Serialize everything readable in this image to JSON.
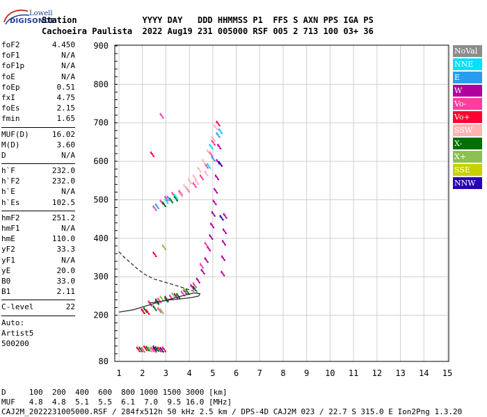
{
  "logo": {
    "line1": "Lowell",
    "line2": "DIGISONDE"
  },
  "header": {
    "row1": "Station             YYYY DAY   DDD HHMMSS P1  FFS S AXN PPS IGA PS",
    "row2": "Cachoeira Paulista  2022 Aug19 231 005000 RSF 005 2 713 100 03+ 36"
  },
  "params": {
    "group1": [
      {
        "label": "foF2",
        "value": "4.450"
      },
      {
        "label": "foF1",
        "value": "N/A"
      },
      {
        "label": "foF1p",
        "value": "N/A"
      },
      {
        "label": "foE",
        "value": "N/A"
      },
      {
        "label": "foEp",
        "value": "0.51"
      },
      {
        "label": "fxI",
        "value": "4.75"
      },
      {
        "label": "foEs",
        "value": "2.15"
      },
      {
        "label": "fmin",
        "value": "1.65"
      }
    ],
    "group2": [
      {
        "label": "MUF(D)",
        "value": "16.02"
      },
      {
        "label": "M(D)",
        "value": "3.60"
      },
      {
        "label": "D",
        "value": "N/A"
      }
    ],
    "group3": [
      {
        "label": "h`F",
        "value": "232.0"
      },
      {
        "label": "h`F2",
        "value": "232.0"
      },
      {
        "label": "h`E",
        "value": "N/A"
      },
      {
        "label": "h`Es",
        "value": "102.5"
      }
    ],
    "group4": [
      {
        "label": "hmF2",
        "value": "251.2"
      },
      {
        "label": "hmF1",
        "value": "N/A"
      },
      {
        "label": "hmE",
        "value": "110.0"
      },
      {
        "label": "yF2",
        "value": "33.3"
      },
      {
        "label": "yF1",
        "value": "N/A"
      },
      {
        "label": "yE",
        "value": "20.0"
      },
      {
        "label": "B0",
        "value": "33.0"
      },
      {
        "label": "B1",
        "value": "2.11"
      }
    ],
    "group5": [
      {
        "label": "C-level",
        "value": "22"
      }
    ],
    "auto_label": "Auto:",
    "artist": "Artist5",
    "artist_version": "500200"
  },
  "legend": [
    {
      "label": "NoVal",
      "color": "#8c8c8c"
    },
    {
      "label": "NNE",
      "color": "#00e0ff"
    },
    {
      "label": "E",
      "color": "#2a9cf0"
    },
    {
      "label": "W",
      "color": "#b0009e"
    },
    {
      "label": "Vo-",
      "color": "#ff3ca0"
    },
    {
      "label": "Vo+",
      "color": "#ff0030"
    },
    {
      "label": "SSW",
      "color": "#ffb4b4"
    },
    {
      "label": "X-",
      "color": "#007000"
    },
    {
      "label": "X+",
      "color": "#8cc050"
    },
    {
      "label": "SSE",
      "color": "#c8d000"
    },
    {
      "label": "NNW",
      "color": "#2800b4"
    }
  ],
  "chart_data": {
    "type": "scatter",
    "xlim": [
      1,
      15
    ],
    "ylim": [
      80,
      900
    ],
    "x_ticks": [
      "1",
      "2",
      "3",
      "4",
      "5",
      "6",
      "7",
      "8",
      "9",
      "10",
      "11",
      "12",
      "13",
      "14",
      "15"
    ],
    "y_ticks": [
      "80",
      "200",
      "300",
      "400",
      "500",
      "600",
      "700",
      "800",
      "900"
    ],
    "grid": true,
    "series": [
      {
        "color": "#b0009e",
        "points": [
          [
            2.3,
            232
          ],
          [
            2.6,
            238
          ],
          [
            3.0,
            245
          ],
          [
            3.4,
            252
          ],
          [
            3.8,
            262
          ],
          [
            4.1,
            275
          ],
          [
            4.35,
            292
          ],
          [
            4.55,
            315
          ],
          [
            4.7,
            345
          ],
          [
            4.8,
            375
          ],
          [
            4.9,
            405
          ],
          [
            4.95,
            435
          ],
          [
            5.0,
            465
          ],
          [
            5.05,
            495
          ],
          [
            5.1,
            525
          ],
          [
            5.15,
            560
          ],
          [
            5.2,
            600
          ],
          [
            5.25,
            640
          ],
          [
            5.3,
            680
          ],
          [
            5.4,
            310
          ],
          [
            5.42,
            350
          ],
          [
            5.45,
            390
          ],
          [
            5.48,
            420
          ],
          [
            5.5,
            460
          ]
        ]
      },
      {
        "color": "#ff3ca0",
        "points": [
          [
            2.0,
            212
          ],
          [
            2.3,
            233
          ],
          [
            2.7,
            240
          ],
          [
            3.2,
            248
          ],
          [
            3.7,
            258
          ],
          [
            4.2,
            280
          ],
          [
            4.5,
            330
          ],
          [
            4.7,
            385
          ],
          [
            2.5,
            480
          ],
          [
            2.8,
            495
          ],
          [
            3.0,
            505
          ],
          [
            3.3,
            515
          ],
          [
            3.6,
            520
          ],
          [
            3.9,
            528
          ],
          [
            4.2,
            540
          ],
          [
            4.5,
            560
          ],
          [
            4.7,
            590
          ],
          [
            4.9,
            620
          ],
          [
            5.0,
            650
          ],
          [
            2.8,
            720
          ],
          [
            2.7,
            215
          ],
          [
            2.0,
            112
          ],
          [
            2.4,
            113
          ]
        ]
      },
      {
        "color": "#ffb4b4",
        "points": [
          [
            3.6,
            515
          ],
          [
            3.8,
            535
          ],
          [
            4.0,
            550
          ],
          [
            4.2,
            560
          ],
          [
            4.4,
            580
          ],
          [
            4.6,
            600
          ],
          [
            4.8,
            625
          ],
          [
            5.0,
            660
          ],
          [
            5.1,
            690
          ],
          [
            4.7,
            570
          ],
          [
            4.3,
            548
          ],
          [
            3.9,
            530
          ]
        ]
      },
      {
        "color": "#007000",
        "points": [
          [
            2.6,
            236
          ],
          [
            3.0,
            242
          ],
          [
            3.5,
            252
          ],
          [
            3.9,
            262
          ],
          [
            4.2,
            271
          ],
          [
            2.9,
            490
          ],
          [
            3.2,
            500
          ],
          [
            3.4,
            505
          ],
          [
            2.1,
            215
          ],
          [
            2.5,
            220
          ],
          [
            1.9,
            113
          ],
          [
            2.6,
            114
          ],
          [
            2.2,
            115
          ]
        ]
      },
      {
        "color": "#8cc050",
        "points": [
          [
            2.8,
            245
          ],
          [
            3.3,
            254
          ],
          [
            3.8,
            266
          ],
          [
            2.9,
            378
          ],
          [
            2.8,
            212
          ],
          [
            2.3,
            113
          ]
        ]
      },
      {
        "color": "#00e0ff",
        "points": [
          [
            3.0,
            498
          ],
          [
            3.4,
            510
          ],
          [
            4.9,
            640
          ],
          [
            5.3,
            680
          ],
          [
            4.8,
            590
          ]
        ]
      },
      {
        "color": "#2a9cf0",
        "points": [
          [
            2.6,
            485
          ],
          [
            3.1,
            505
          ],
          [
            5.2,
            670
          ],
          [
            5.0,
            608
          ]
        ]
      },
      {
        "color": "#ff0030",
        "points": [
          [
            2.0,
            212
          ],
          [
            2.2,
            210
          ],
          [
            1.8,
            113
          ],
          [
            2.1,
            116
          ],
          [
            2.5,
            112
          ],
          [
            2.7,
            113
          ],
          [
            2.9,
            113
          ],
          [
            2.4,
            620
          ],
          [
            2.5,
            360
          ],
          [
            5.2,
            700
          ]
        ]
      },
      {
        "color": "#2800b4",
        "points": [
          [
            2.8,
            112
          ],
          [
            2.5,
            116
          ],
          [
            5.35,
            455
          ],
          [
            5.3,
            595
          ]
        ]
      }
    ],
    "profile_solid": [
      [
        1.0,
        208
      ],
      [
        1.6,
        214
      ],
      [
        2.2,
        225
      ],
      [
        2.8,
        236
      ],
      [
        3.3,
        244
      ],
      [
        3.8,
        252
      ],
      [
        4.2,
        258
      ],
      [
        4.45,
        256
      ],
      [
        4.4,
        250
      ],
      [
        4.1,
        246
      ],
      [
        3.7,
        243
      ],
      [
        3.2,
        240
      ],
      [
        2.8,
        236
      ],
      [
        2.3,
        232
      ]
    ],
    "profile_dashed": [
      [
        1.0,
        365
      ],
      [
        1.2,
        352
      ],
      [
        1.5,
        336
      ],
      [
        1.8,
        320
      ],
      [
        2.1,
        306
      ],
      [
        2.5,
        294
      ],
      [
        3.0,
        285
      ],
      [
        3.5,
        276
      ],
      [
        4.0,
        266
      ],
      [
        4.35,
        260
      ]
    ]
  },
  "footer": {
    "d_row": "D     100  200  400  600  800 1000 1500 3000 [km]",
    "muf_row": "MUF   4.8  4.8  5.1  5.5  6.1  7.0  9.5 16.0 [MHz]",
    "info_row": "CAJ2M_2022231005000.RSF / 284fx512h 50 kHz 2.5 km / DPS-4D CAJ2M 023 / 22.7 S 315.0 E Ion2Png 1.3.20"
  }
}
